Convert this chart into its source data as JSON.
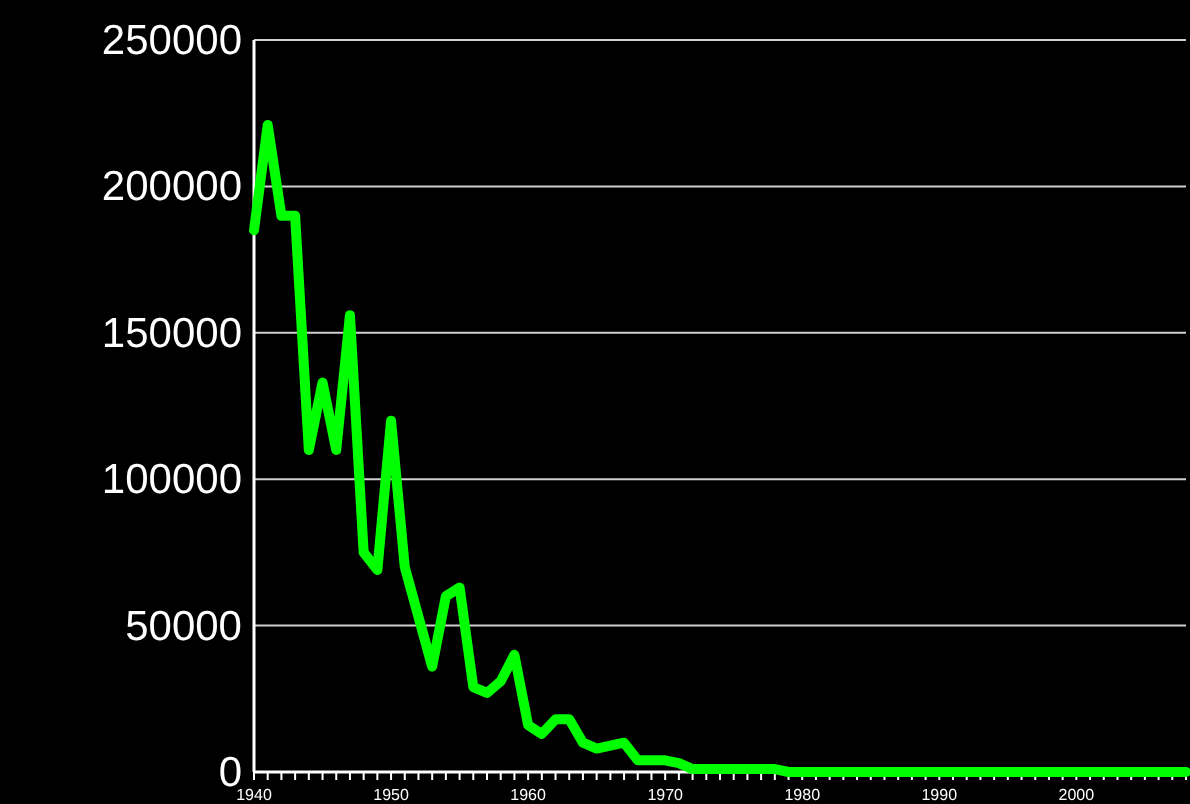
{
  "chart_data": {
    "type": "line",
    "x": [
      1940,
      1941,
      1942,
      1943,
      1944,
      1945,
      1946,
      1947,
      1948,
      1949,
      1950,
      1951,
      1952,
      1953,
      1954,
      1955,
      1956,
      1957,
      1958,
      1959,
      1960,
      1961,
      1962,
      1963,
      1964,
      1965,
      1966,
      1967,
      1968,
      1969,
      1970,
      1971,
      1972,
      1973,
      1974,
      1975,
      1976,
      1977,
      1978,
      1979,
      1980,
      1981,
      1982,
      1983,
      1984,
      1985,
      1986,
      1987,
      1988,
      1989,
      1990,
      1991,
      1992,
      1993,
      1994,
      1995,
      1996,
      1997,
      1998,
      1999,
      2000,
      2001,
      2002,
      2003,
      2004,
      2005,
      2006,
      2007,
      2008
    ],
    "series": [
      {
        "color": "#00ff00",
        "values": [
          185000,
          221000,
          190000,
          190000,
          110000,
          133000,
          110000,
          156000,
          75000,
          69000,
          120000,
          70000,
          53000,
          36000,
          60000,
          63000,
          29000,
          27000,
          31000,
          40000,
          16000,
          13000,
          18000,
          18000,
          10000,
          8000,
          9000,
          10000,
          4000,
          4000,
          4000,
          3000,
          1000,
          1000,
          1000,
          1000,
          1000,
          1000,
          1000,
          0,
          0,
          0,
          0,
          0,
          0,
          0,
          0,
          0,
          0,
          0,
          0,
          0,
          0,
          0,
          0,
          0,
          0,
          0,
          0,
          0,
          0,
          0,
          0,
          0,
          0,
          0,
          0,
          0,
          0
        ]
      }
    ],
    "xlim": [
      1940,
      2008
    ],
    "ylim": [
      0,
      250000
    ],
    "yticks": [
      0,
      50000,
      100000,
      150000,
      200000,
      250000
    ],
    "xticks": [
      1940,
      {
        "value": 1941,
        "label": null
      },
      {
        "value": 1942,
        "label": null
      },
      {
        "value": 1943,
        "label": null
      },
      {
        "value": 1944,
        "label": null
      },
      {
        "value": 1945,
        "label": null
      },
      {
        "value": 1946,
        "label": null
      },
      {
        "value": 1947,
        "label": null
      },
      {
        "value": 1948,
        "label": null
      },
      {
        "value": 1949,
        "label": null
      },
      1950,
      {
        "value": 1951,
        "label": null
      },
      {
        "value": 1952,
        "label": null
      },
      {
        "value": 1953,
        "label": null
      },
      {
        "value": 1954,
        "label": null
      },
      {
        "value": 1955,
        "label": null
      },
      {
        "value": 1956,
        "label": null
      },
      {
        "value": 1957,
        "label": null
      },
      {
        "value": 1958,
        "label": null
      },
      {
        "value": 1959,
        "label": null
      },
      1960,
      {
        "value": 1961,
        "label": null
      },
      {
        "value": 1962,
        "label": null
      },
      {
        "value": 1963,
        "label": null
      },
      {
        "value": 1964,
        "label": null
      },
      {
        "value": 1965,
        "label": null
      },
      {
        "value": 1966,
        "label": null
      },
      {
        "value": 1967,
        "label": null
      },
      {
        "value": 1968,
        "label": null
      },
      {
        "value": 1969,
        "label": null
      },
      1970,
      {
        "value": 1971,
        "label": null
      },
      {
        "value": 1972,
        "label": null
      },
      {
        "value": 1973,
        "label": null
      },
      {
        "value": 1974,
        "label": null
      },
      {
        "value": 1975,
        "label": null
      },
      {
        "value": 1976,
        "label": null
      },
      {
        "value": 1977,
        "label": null
      },
      {
        "value": 1978,
        "label": null
      },
      {
        "value": 1979,
        "label": null
      },
      1980,
      {
        "value": 1981,
        "label": null
      },
      {
        "value": 1982,
        "label": null
      },
      {
        "value": 1983,
        "label": null
      },
      {
        "value": 1984,
        "label": null
      },
      {
        "value": 1985,
        "label": null
      },
      {
        "value": 1986,
        "label": null
      },
      {
        "value": 1987,
        "label": null
      },
      {
        "value": 1988,
        "label": null
      },
      {
        "value": 1989,
        "label": null
      },
      1990,
      {
        "value": 1991,
        "label": null
      },
      {
        "value": 1992,
        "label": null
      },
      {
        "value": 1993,
        "label": null
      },
      {
        "value": 1994,
        "label": null
      },
      {
        "value": 1995,
        "label": null
      },
      {
        "value": 1996,
        "label": null
      },
      {
        "value": 1997,
        "label": null
      },
      {
        "value": 1998,
        "label": null
      },
      {
        "value": 1999,
        "label": null
      },
      2000,
      {
        "value": 2001,
        "label": null
      },
      {
        "value": 2002,
        "label": null
      },
      {
        "value": 2003,
        "label": null
      },
      {
        "value": 2004,
        "label": null
      },
      {
        "value": 2005,
        "label": null
      },
      {
        "value": 2006,
        "label": null
      },
      {
        "value": 2007,
        "label": null
      },
      {
        "value": 2008,
        "label": null
      }
    ],
    "grid": "y",
    "marker": "none",
    "line_style": "solid"
  }
}
